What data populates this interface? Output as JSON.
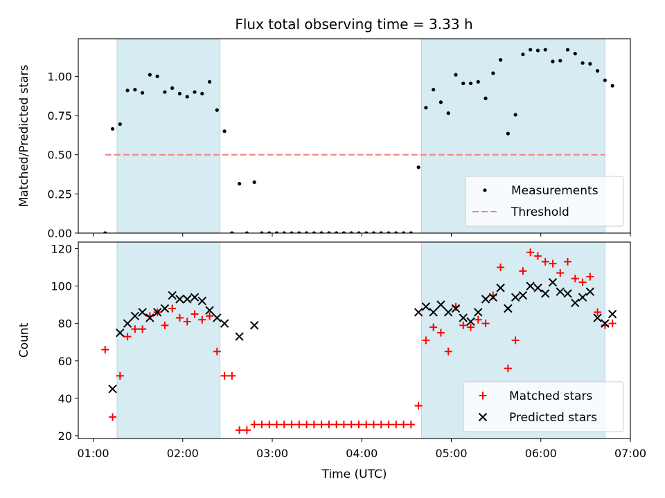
{
  "title": "Flux total observing time = 3.33 h",
  "chart_data": [
    {
      "type": "scatter",
      "ylabel": "Matched/Predicted stars",
      "ylim": [
        0.0,
        1.24
      ],
      "yticks": [
        0.0,
        0.25,
        0.5,
        0.75,
        1.0
      ],
      "ytick_labels": [
        "0.00",
        "0.25",
        "0.50",
        "0.75",
        "1.00"
      ],
      "xlim": [
        "00:50",
        "07:00"
      ],
      "legend_position": "lower right",
      "legend": [
        {
          "label": "Measurements",
          "marker": "dot",
          "color": "#000000"
        },
        {
          "label": "Threshold",
          "marker": "dashed-line",
          "color": "#f08080"
        }
      ],
      "threshold": {
        "y": 0.5,
        "x_range": [
          "01:08",
          "06:43"
        ],
        "color": "#f08080"
      },
      "shaded_intervals": [
        {
          "start": "01:16",
          "end": "02:25",
          "color": "#add8e6"
        },
        {
          "start": "04:40",
          "end": "06:43",
          "color": "#add8e6"
        }
      ],
      "series": [
        {
          "name": "Measurements",
          "color": "#000000",
          "points": [
            [
              "01:08",
              0.0
            ],
            [
              "01:13",
              0.665
            ],
            [
              "01:18",
              0.695
            ],
            [
              "01:23",
              0.91
            ],
            [
              "01:28",
              0.915
            ],
            [
              "01:33",
              0.895
            ],
            [
              "01:38",
              1.01
            ],
            [
              "01:43",
              1.0
            ],
            [
              "01:48",
              0.9
            ],
            [
              "01:53",
              0.925
            ],
            [
              "01:58",
              0.89
            ],
            [
              "02:03",
              0.87
            ],
            [
              "02:08",
              0.9
            ],
            [
              "02:13",
              0.89
            ],
            [
              "02:18",
              0.965
            ],
            [
              "02:23",
              0.785
            ],
            [
              "02:28",
              0.65
            ],
            [
              "02:33",
              0.0
            ],
            [
              "02:38",
              0.315
            ],
            [
              "02:43",
              0.0
            ],
            [
              "02:48",
              0.325
            ],
            [
              "02:53",
              0.0
            ],
            [
              "02:58",
              0.0
            ],
            [
              "03:03",
              0.0
            ],
            [
              "03:08",
              0.0
            ],
            [
              "03:13",
              0.0
            ],
            [
              "03:18",
              0.0
            ],
            [
              "03:23",
              0.0
            ],
            [
              "03:28",
              0.0
            ],
            [
              "03:33",
              0.0
            ],
            [
              "03:38",
              0.0
            ],
            [
              "03:43",
              0.0
            ],
            [
              "03:48",
              0.0
            ],
            [
              "03:53",
              0.0
            ],
            [
              "03:58",
              0.0
            ],
            [
              "04:03",
              0.0
            ],
            [
              "04:08",
              0.0
            ],
            [
              "04:13",
              0.0
            ],
            [
              "04:18",
              0.0
            ],
            [
              "04:23",
              0.0
            ],
            [
              "04:28",
              0.0
            ],
            [
              "04:33",
              0.0
            ],
            [
              "04:38",
              0.42
            ],
            [
              "04:43",
              0.8
            ],
            [
              "04:48",
              0.915
            ],
            [
              "04:53",
              0.835
            ],
            [
              "04:58",
              0.765
            ],
            [
              "05:03",
              1.01
            ],
            [
              "05:08",
              0.955
            ],
            [
              "05:13",
              0.955
            ],
            [
              "05:18",
              0.965
            ],
            [
              "05:23",
              0.86
            ],
            [
              "05:28",
              1.02
            ],
            [
              "05:33",
              1.105
            ],
            [
              "05:38",
              0.635
            ],
            [
              "05:43",
              0.755
            ],
            [
              "05:48",
              1.14
            ],
            [
              "05:53",
              1.17
            ],
            [
              "05:58",
              1.165
            ],
            [
              "06:03",
              1.17
            ],
            [
              "06:08",
              1.095
            ],
            [
              "06:13",
              1.1
            ],
            [
              "06:18",
              1.17
            ],
            [
              "06:23",
              1.145
            ],
            [
              "06:28",
              1.085
            ],
            [
              "06:33",
              1.08
            ],
            [
              "06:38",
              1.035
            ],
            [
              "06:43",
              0.975
            ],
            [
              "06:48",
              0.94
            ]
          ]
        }
      ]
    },
    {
      "type": "scatter",
      "xlabel": "Time (UTC)",
      "ylabel": "Count",
      "ylim": [
        18.5,
        123.5
      ],
      "yticks": [
        20,
        40,
        60,
        80,
        100,
        120
      ],
      "xlim": [
        "00:50",
        "07:00"
      ],
      "xticks": [
        "01:00",
        "02:00",
        "03:00",
        "04:00",
        "05:00",
        "06:00",
        "07:00"
      ],
      "legend_position": "lower right",
      "legend": [
        {
          "label": "Matched stars",
          "marker": "plus",
          "color": "#ff0000"
        },
        {
          "label": "Predicted stars",
          "marker": "x",
          "color": "#000000"
        }
      ],
      "shaded_intervals": [
        {
          "start": "01:16",
          "end": "02:25",
          "color": "#add8e6"
        },
        {
          "start": "04:40",
          "end": "06:43",
          "color": "#add8e6"
        }
      ],
      "series": [
        {
          "name": "Matched stars",
          "marker": "plus",
          "color": "#ff0000",
          "points": [
            [
              "01:08",
              66
            ],
            [
              "01:13",
              30
            ],
            [
              "01:18",
              52
            ],
            [
              "01:23",
              73
            ],
            [
              "01:28",
              77
            ],
            [
              "01:33",
              77
            ],
            [
              "01:38",
              84
            ],
            [
              "01:43",
              86
            ],
            [
              "01:48",
              79
            ],
            [
              "01:53",
              88
            ],
            [
              "01:58",
              83
            ],
            [
              "02:03",
              81
            ],
            [
              "02:08",
              85
            ],
            [
              "02:13",
              82
            ],
            [
              "02:18",
              84
            ],
            [
              "02:23",
              65
            ],
            [
              "02:28",
              52
            ],
            [
              "02:33",
              52
            ],
            [
              "02:38",
              23
            ],
            [
              "02:43",
              23
            ],
            [
              "02:48",
              26
            ],
            [
              "02:53",
              26
            ],
            [
              "02:58",
              26
            ],
            [
              "03:03",
              26
            ],
            [
              "03:08",
              26
            ],
            [
              "03:13",
              26
            ],
            [
              "03:18",
              26
            ],
            [
              "03:23",
              26
            ],
            [
              "03:28",
              26
            ],
            [
              "03:33",
              26
            ],
            [
              "03:38",
              26
            ],
            [
              "03:43",
              26
            ],
            [
              "03:48",
              26
            ],
            [
              "03:53",
              26
            ],
            [
              "03:58",
              26
            ],
            [
              "04:03",
              26
            ],
            [
              "04:08",
              26
            ],
            [
              "04:13",
              26
            ],
            [
              "04:18",
              26
            ],
            [
              "04:23",
              26
            ],
            [
              "04:28",
              26
            ],
            [
              "04:33",
              26
            ],
            [
              "04:38",
              36
            ],
            [
              "04:43",
              71
            ],
            [
              "04:48",
              78
            ],
            [
              "04:53",
              75
            ],
            [
              "04:58",
              65
            ],
            [
              "05:03",
              89
            ],
            [
              "05:08",
              79
            ],
            [
              "05:13",
              78
            ],
            [
              "05:18",
              82
            ],
            [
              "05:23",
              80
            ],
            [
              "05:28",
              95
            ],
            [
              "05:33",
              110
            ],
            [
              "05:38",
              56
            ],
            [
              "05:43",
              71
            ],
            [
              "05:48",
              108
            ],
            [
              "05:53",
              118
            ],
            [
              "05:58",
              116
            ],
            [
              "06:03",
              113
            ],
            [
              "06:08",
              112
            ],
            [
              "06:13",
              107
            ],
            [
              "06:18",
              113
            ],
            [
              "06:23",
              104
            ],
            [
              "06:28",
              102
            ],
            [
              "06:33",
              105
            ],
            [
              "06:38",
              86
            ],
            [
              "06:43",
              79
            ],
            [
              "06:48",
              80
            ]
          ]
        },
        {
          "name": "Predicted stars",
          "marker": "x",
          "color": "#000000",
          "points": [
            [
              "01:13",
              45
            ],
            [
              "01:18",
              75
            ],
            [
              "01:23",
              80
            ],
            [
              "01:28",
              84
            ],
            [
              "01:33",
              86
            ],
            [
              "01:38",
              83
            ],
            [
              "01:43",
              86
            ],
            [
              "01:48",
              88
            ],
            [
              "01:53",
              95
            ],
            [
              "01:58",
              93
            ],
            [
              "02:03",
              93
            ],
            [
              "02:08",
              94
            ],
            [
              "02:13",
              92
            ],
            [
              "02:18",
              87
            ],
            [
              "02:23",
              83
            ],
            [
              "02:28",
              80
            ],
            [
              "02:38",
              73
            ],
            [
              "02:48",
              79
            ],
            [
              "04:38",
              86
            ],
            [
              "04:43",
              89
            ],
            [
              "04:48",
              86
            ],
            [
              "04:53",
              90
            ],
            [
              "04:58",
              86
            ],
            [
              "05:03",
              88
            ],
            [
              "05:08",
              83
            ],
            [
              "05:13",
              81
            ],
            [
              "05:18",
              86
            ],
            [
              "05:23",
              93
            ],
            [
              "05:28",
              94
            ],
            [
              "05:33",
              99
            ],
            [
              "05:38",
              88
            ],
            [
              "05:43",
              94
            ],
            [
              "05:48",
              95
            ],
            [
              "05:53",
              100
            ],
            [
              "05:58",
              99
            ],
            [
              "06:03",
              96
            ],
            [
              "06:08",
              102
            ],
            [
              "06:13",
              97
            ],
            [
              "06:18",
              96
            ],
            [
              "06:23",
              91
            ],
            [
              "06:28",
              94
            ],
            [
              "06:33",
              97
            ],
            [
              "06:38",
              83
            ],
            [
              "06:43",
              80
            ],
            [
              "06:48",
              85
            ]
          ]
        }
      ]
    }
  ]
}
